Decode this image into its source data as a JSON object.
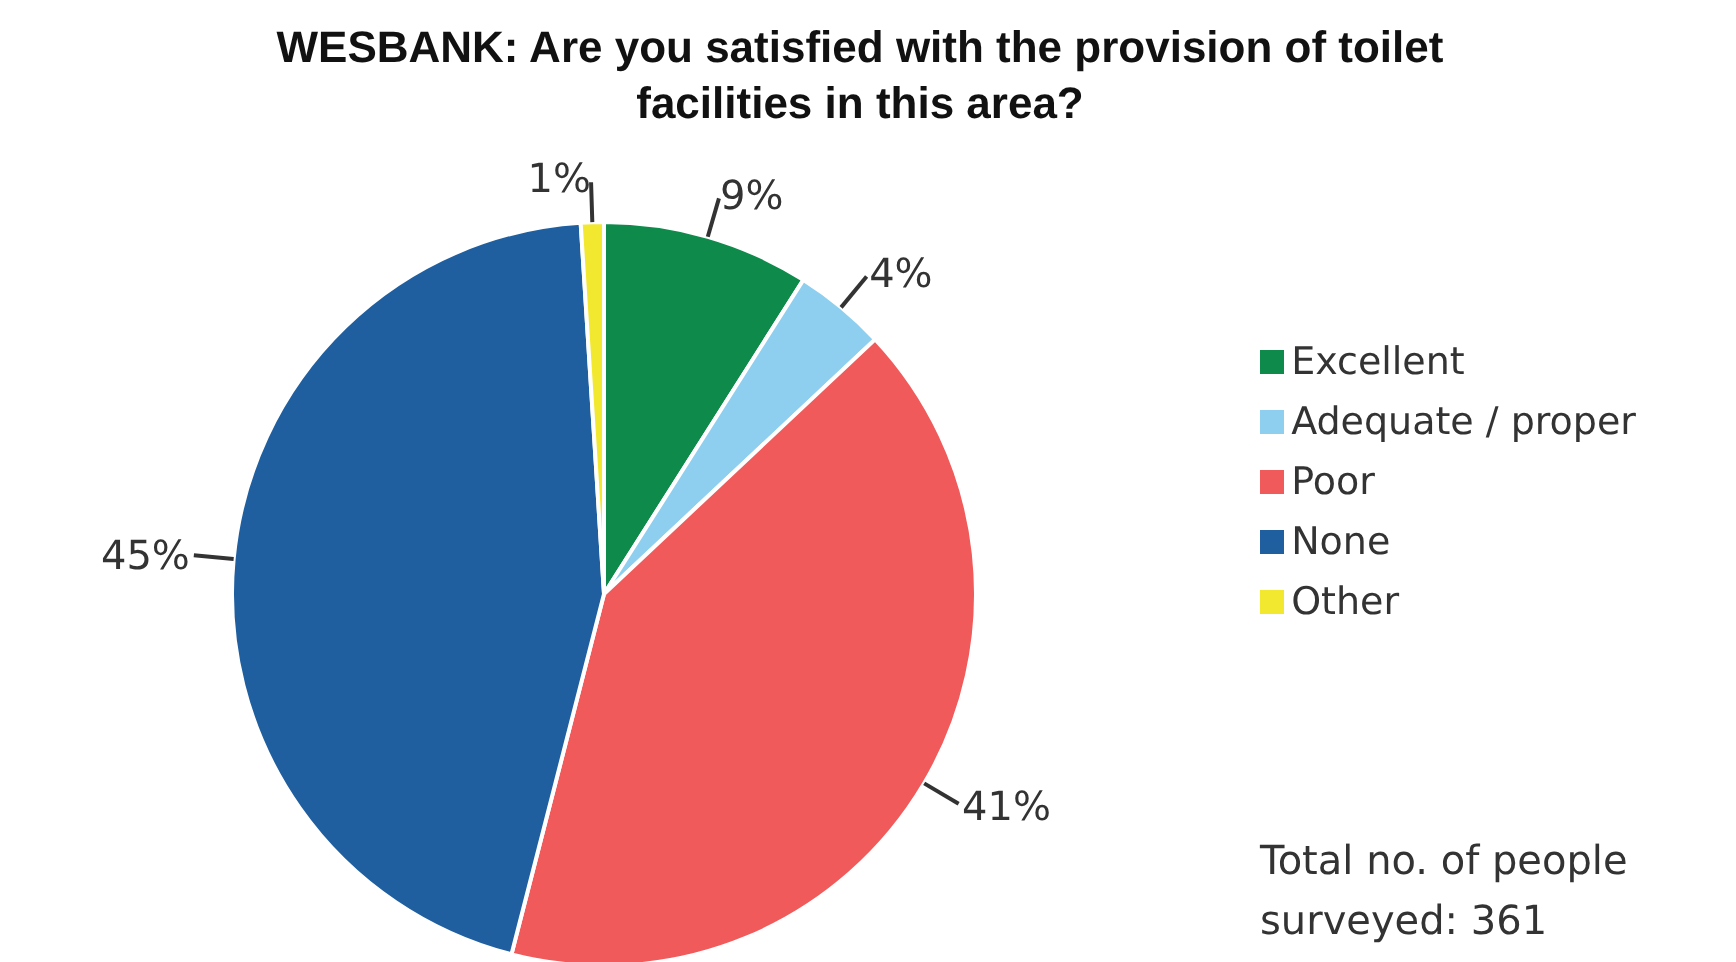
{
  "chart_data": {
    "type": "pie",
    "title": "WESBANK: Are you satisfied with the provision of toilet facilities in this area?",
    "categories": [
      "Excellent",
      "Adequate / proper",
      "Poor",
      "None",
      "Other"
    ],
    "values": [
      9,
      4,
      41,
      45,
      1
    ],
    "colors": [
      "#0e8a4a",
      "#8ecfef",
      "#f05a5a",
      "#1f5fa0",
      "#f2e830"
    ],
    "value_labels": [
      "9%",
      "4%",
      "41%",
      "45%",
      "1%"
    ],
    "legend": "right",
    "annotations": [
      "Total no. of people surveyed: 361"
    ]
  }
}
